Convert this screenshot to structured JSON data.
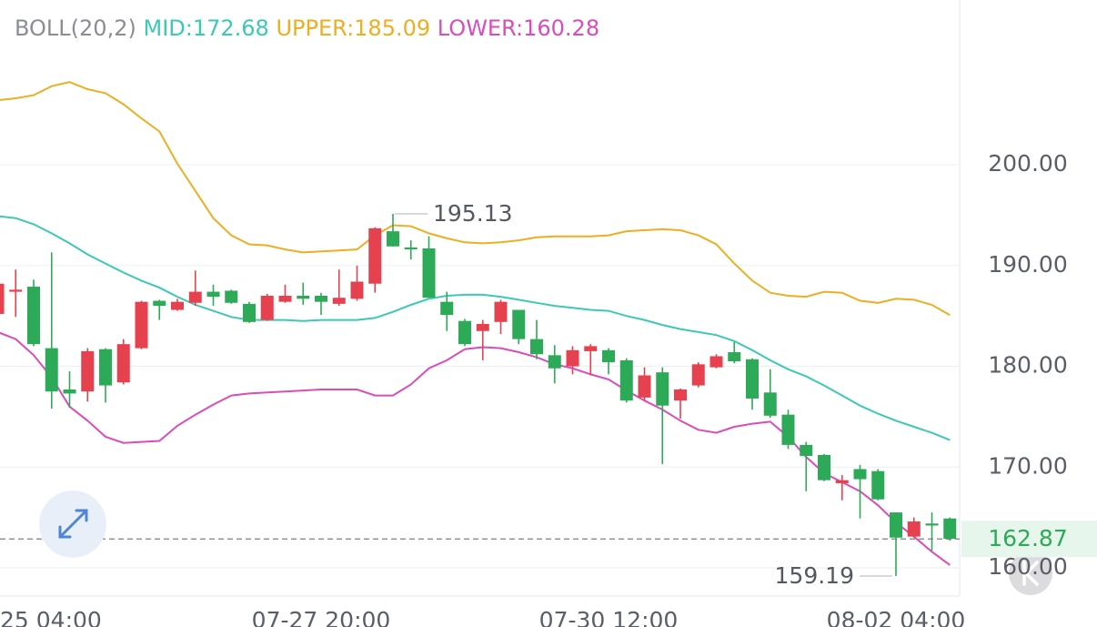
{
  "chart_data": {
    "type": "candlestick",
    "legend": {
      "indicator": "BOLL(20,2)",
      "items": [
        "MID:172.68",
        "UPPER:185.09",
        "LOWER:160.28"
      ]
    },
    "categories": [
      null,
      null,
      "25 04:00",
      null,
      null,
      null,
      null,
      null,
      null,
      null,
      null,
      null,
      null,
      null,
      null,
      null,
      null,
      null,
      "07-27 20:00",
      null,
      null,
      null,
      null,
      null,
      null,
      null,
      null,
      null,
      null,
      null,
      null,
      null,
      null,
      null,
      "07-30 12:00",
      null,
      null,
      null,
      null,
      null,
      null,
      null,
      null,
      null,
      null,
      null,
      null,
      null,
      null,
      null,
      "08-02 04:00",
      null,
      null,
      null
    ],
    "open": [
      185.2,
      187.4,
      187.9,
      181.8,
      177.7,
      177.5,
      181.7,
      178.4,
      181.8,
      186.5,
      185.6,
      186.3,
      187.4,
      187.5,
      186.2,
      184.6,
      186.4,
      187.0,
      187.0,
      186.2,
      186.7,
      188.2,
      193.4,
      191.8,
      191.7,
      186.4,
      184.5,
      183.5,
      184.4,
      185.6,
      182.7,
      181.1,
      180.0,
      181.5,
      181.6,
      180.6,
      176.9,
      179.4,
      176.6,
      178.1,
      179.9,
      181.4,
      180.7,
      177.4,
      175.2,
      172.2,
      171.2,
      168.4,
      169.8,
      169.6,
      165.5,
      163.1,
      164.4,
      164.9
    ],
    "high": [
      188.5,
      189.6,
      188.6,
      191.3,
      179.5,
      181.8,
      181.8,
      182.7,
      186.5,
      186.6,
      186.7,
      189.5,
      188.1,
      187.6,
      186.4,
      187.2,
      188.1,
      188.3,
      187.3,
      189.6,
      190.0,
      193.8,
      195.13,
      192.5,
      192.9,
      187.4,
      184.7,
      184.6,
      186.6,
      185.6,
      184.6,
      182.1,
      182.0,
      182.2,
      181.8,
      180.8,
      179.9,
      179.9,
      177.8,
      180.4,
      181.2,
      182.4,
      180.8,
      179.7,
      175.7,
      172.5,
      171.3,
      169.2,
      170.2,
      169.8,
      165.5,
      165.0,
      165.5,
      165.0
    ],
    "low": [
      184.8,
      184.9,
      182.0,
      175.8,
      175.9,
      176.5,
      176.4,
      178.2,
      181.7,
      184.6,
      185.5,
      186.0,
      186.0,
      186.2,
      184.3,
      184.5,
      186.3,
      186.1,
      185.1,
      186.0,
      186.5,
      187.3,
      191.9,
      190.6,
      186.8,
      183.5,
      182.0,
      180.6,
      183.2,
      182.2,
      180.7,
      178.3,
      179.2,
      179.1,
      179.2,
      176.4,
      176.6,
      170.3,
      174.8,
      177.9,
      179.8,
      180.3,
      175.7,
      174.9,
      171.8,
      167.6,
      168.6,
      166.7,
      164.9,
      166.7,
      159.19,
      163.0,
      161.7,
      162.7
    ],
    "close": [
      188.2,
      187.6,
      182.2,
      177.5,
      177.3,
      181.5,
      178.1,
      182.2,
      186.4,
      186.0,
      186.4,
      187.4,
      186.9,
      186.3,
      184.4,
      187.0,
      187.0,
      186.7,
      186.4,
      186.8,
      188.4,
      193.7,
      191.9,
      191.6,
      186.8,
      185.1,
      182.2,
      184.2,
      186.4,
      182.7,
      181.2,
      179.8,
      181.6,
      182.0,
      180.4,
      176.6,
      179.1,
      176.1,
      177.7,
      180.2,
      181.0,
      180.5,
      176.8,
      175.1,
      172.2,
      171.1,
      168.7,
      168.7,
      168.8,
      166.8,
      163.0,
      164.6,
      164.2,
      162.87
    ],
    "up_color": "#e5414f",
    "down_color": "#2daa57",
    "series": [
      {
        "name": "MID",
        "color": "#3cc9b4",
        "values": [
          194.9,
          194.7,
          194.1,
          193.2,
          192.2,
          191.1,
          190.2,
          189.3,
          188.5,
          187.8,
          186.9,
          186.1,
          185.5,
          184.9,
          184.6,
          184.6,
          184.6,
          184.5,
          184.6,
          184.6,
          184.6,
          184.8,
          185.4,
          186.1,
          186.7,
          187.0,
          187.1,
          187.1,
          186.9,
          186.6,
          186.3,
          186.0,
          185.8,
          185.6,
          185.5,
          185.0,
          184.6,
          184.1,
          183.7,
          183.4,
          183.1,
          182.5,
          181.6,
          180.6,
          179.7,
          179.0,
          178.1,
          177.1,
          176.1,
          175.3,
          174.6,
          174.0,
          173.4,
          172.68
        ]
      },
      {
        "name": "UPPER",
        "color": "#edae22",
        "values": [
          206.4,
          206.6,
          206.9,
          207.8,
          208.2,
          207.5,
          207.1,
          206.0,
          204.6,
          203.3,
          200.1,
          197.4,
          194.7,
          193.0,
          192.1,
          192.0,
          191.6,
          191.3,
          191.4,
          191.5,
          191.6,
          193.0,
          194.0,
          193.9,
          193.2,
          192.7,
          192.3,
          192.2,
          192.3,
          192.5,
          192.8,
          192.9,
          192.9,
          192.9,
          193.0,
          193.4,
          193.5,
          193.6,
          193.5,
          193.0,
          192.1,
          190.2,
          188.5,
          187.3,
          187.0,
          186.9,
          187.4,
          187.3,
          186.5,
          186.3,
          186.7,
          186.6,
          186.1,
          185.09
        ]
      },
      {
        "name": "LOWER",
        "color": "#d84cbc",
        "values": [
          183.4,
          182.7,
          181.1,
          178.9,
          176.0,
          174.6,
          173.0,
          172.4,
          172.5,
          172.6,
          174.1,
          175.2,
          176.2,
          177.1,
          177.3,
          177.4,
          177.5,
          177.6,
          177.7,
          177.7,
          177.7,
          177.1,
          177.1,
          178.2,
          179.8,
          180.6,
          181.7,
          181.9,
          181.8,
          181.4,
          180.9,
          180.2,
          179.8,
          179.2,
          178.7,
          177.6,
          176.6,
          175.7,
          174.6,
          173.7,
          173.4,
          174.0,
          174.3,
          174.5,
          173.0,
          171.0,
          169.4,
          168.5,
          167.6,
          166.2,
          164.5,
          163.1,
          161.6,
          160.28
        ]
      }
    ],
    "ylim": [
      157.2,
      216.35
    ],
    "yticks": [
      {
        "value": 160,
        "label": "160.00"
      },
      {
        "value": 170,
        "label": "170.00"
      },
      {
        "value": 180,
        "label": "180.00"
      },
      {
        "value": 190,
        "label": "190.00"
      },
      {
        "value": 200,
        "label": "200.00"
      }
    ],
    "grid": true
  }
}
